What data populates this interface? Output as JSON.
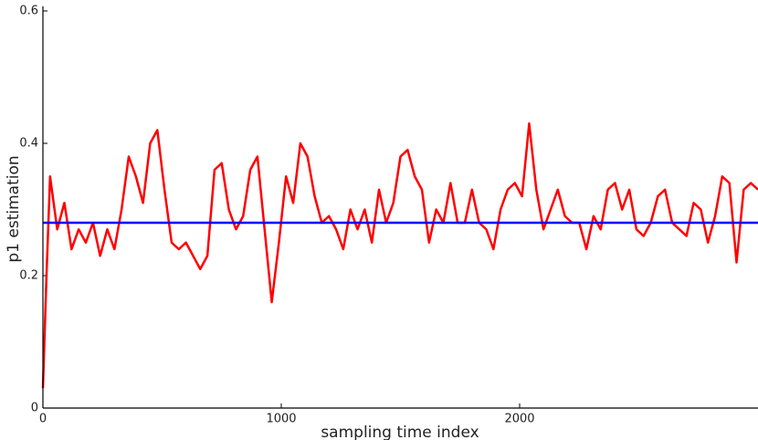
{
  "chart_data": {
    "type": "line",
    "xlabel": "sampling time index",
    "ylabel": "p1 estimation",
    "xlim": [
      0,
      3000
    ],
    "ylim": [
      0,
      0.6
    ],
    "xticks": [
      0,
      1000,
      2000
    ],
    "yticks": [
      0,
      0.2,
      0.4,
      0.6
    ],
    "series": [
      {
        "color": "#ff0000",
        "x": [
          0,
          15,
          30,
          60,
          90,
          120,
          150,
          180,
          210,
          240,
          270,
          300,
          330,
          360,
          390,
          420,
          450,
          480,
          510,
          540,
          570,
          600,
          630,
          660,
          690,
          720,
          750,
          780,
          810,
          840,
          870,
          900,
          930,
          960,
          990,
          1020,
          1050,
          1080,
          1110,
          1140,
          1170,
          1200,
          1230,
          1260,
          1290,
          1320,
          1350,
          1380,
          1410,
          1440,
          1470,
          1500,
          1530,
          1560,
          1590,
          1620,
          1650,
          1680,
          1710,
          1740,
          1770,
          1800,
          1830,
          1860,
          1890,
          1920,
          1950,
          1980,
          2010,
          2040,
          2070,
          2100,
          2130,
          2160,
          2190,
          2220,
          2250,
          2280,
          2310,
          2340,
          2370,
          2400,
          2430,
          2460,
          2490,
          2520,
          2550,
          2580,
          2610,
          2640,
          2670,
          2700,
          2730,
          2760,
          2790,
          2820,
          2850,
          2880,
          2910,
          2940,
          2970,
          3000
        ],
        "values": [
          0.03,
          0.2,
          0.35,
          0.27,
          0.31,
          0.24,
          0.27,
          0.25,
          0.28,
          0.23,
          0.27,
          0.24,
          0.3,
          0.38,
          0.35,
          0.31,
          0.4,
          0.42,
          0.33,
          0.25,
          0.24,
          0.25,
          0.23,
          0.21,
          0.23,
          0.36,
          0.37,
          0.3,
          0.27,
          0.29,
          0.36,
          0.38,
          0.27,
          0.16,
          0.25,
          0.35,
          0.31,
          0.4,
          0.38,
          0.32,
          0.28,
          0.29,
          0.27,
          0.24,
          0.3,
          0.27,
          0.3,
          0.25,
          0.33,
          0.28,
          0.31,
          0.38,
          0.39,
          0.35,
          0.33,
          0.25,
          0.3,
          0.28,
          0.34,
          0.28,
          0.28,
          0.33,
          0.28,
          0.27,
          0.24,
          0.3,
          0.33,
          0.34,
          0.32,
          0.43,
          0.33,
          0.27,
          0.3,
          0.33,
          0.29,
          0.28,
          0.28,
          0.24,
          0.29,
          0.27,
          0.33,
          0.34,
          0.3,
          0.33,
          0.27,
          0.26,
          0.28,
          0.32,
          0.33,
          0.28,
          0.27,
          0.26,
          0.31,
          0.3,
          0.25,
          0.29,
          0.35,
          0.34,
          0.22,
          0.33,
          0.34,
          0.33
        ]
      },
      {
        "color": "#0000ff",
        "x": [
          0,
          3000
        ],
        "values": [
          0.28,
          0.28
        ]
      }
    ]
  }
}
